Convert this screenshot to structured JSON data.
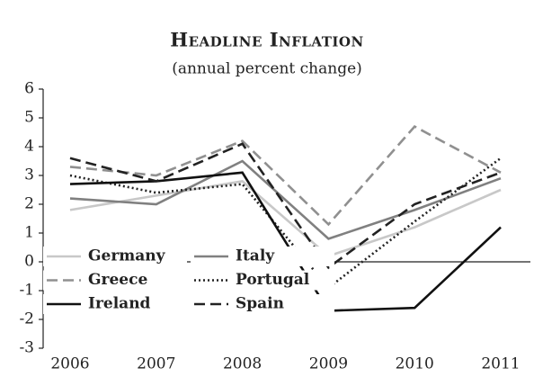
{
  "chart_data": {
    "type": "line",
    "title": "Headline Inflation",
    "subtitle": "(annual percent change)",
    "categories": [
      "2006",
      "2007",
      "2008",
      "2009",
      "2010",
      "2011"
    ],
    "series": [
      {
        "name": "Germany",
        "color": "#c8c8c8",
        "dash": "solid",
        "values": [
          1.8,
          2.3,
          2.8,
          0.2,
          1.2,
          2.5
        ]
      },
      {
        "name": "Italy",
        "color": "#808080",
        "dash": "solid",
        "values": [
          2.2,
          2.0,
          3.5,
          0.8,
          1.8,
          2.9
        ]
      },
      {
        "name": "Greece",
        "color": "#909090",
        "dash": "dashed",
        "values": [
          3.3,
          3.0,
          4.2,
          1.3,
          4.7,
          3.1
        ]
      },
      {
        "name": "Portugal",
        "color": "#222222",
        "dash": "dotted",
        "values": [
          3.0,
          2.4,
          2.7,
          -0.9,
          1.4,
          3.6
        ]
      },
      {
        "name": "Ireland",
        "color": "#111111",
        "dash": "solid",
        "values": [
          2.7,
          2.8,
          3.1,
          -1.7,
          -1.6,
          1.2
        ]
      },
      {
        "name": "Spain",
        "color": "#222222",
        "dash": "dashed",
        "values": [
          3.6,
          2.8,
          4.1,
          -0.2,
          2.0,
          3.1
        ]
      }
    ],
    "ylim": [
      -3,
      6
    ],
    "yticks": [
      -3,
      -2,
      -1,
      0,
      1,
      2,
      3,
      4,
      5,
      6
    ],
    "legend": "lower left"
  }
}
